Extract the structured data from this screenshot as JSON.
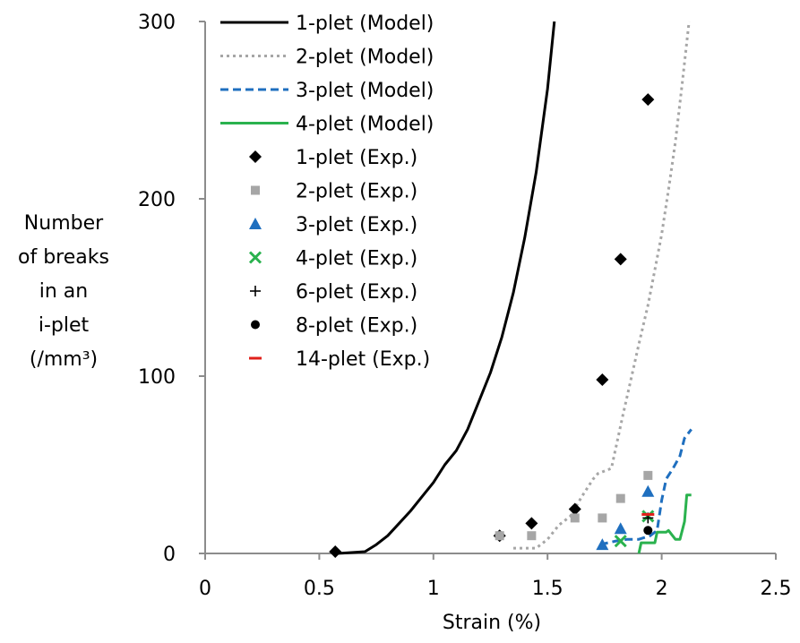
{
  "chart_data": {
    "type": "scatter",
    "xlabel": "Strain (%)",
    "ylabel_lines": [
      "Number",
      "of breaks",
      "in an",
      "i-plet",
      "(/mm³)"
    ],
    "xlim": [
      0,
      2.5
    ],
    "ylim": [
      0,
      300
    ],
    "xticks": [
      0,
      0.5,
      1,
      1.5,
      2,
      2.5
    ],
    "xtick_labels": [
      "0",
      "0.5",
      "1",
      "1.5",
      "2",
      "2.5"
    ],
    "yticks": [
      0,
      100,
      200,
      300
    ],
    "ytick_labels": [
      "0",
      "100",
      "200",
      "300"
    ],
    "grid": false,
    "legend_position": "top-left inside plot",
    "series": [
      {
        "name": "1-plet (Model)",
        "kind": "line",
        "color": "#000000",
        "dash": "solid",
        "x": [
          0.58,
          0.7,
          0.75,
          0.8,
          0.85,
          0.9,
          0.95,
          1.0,
          1.05,
          1.1,
          1.15,
          1.2,
          1.25,
          1.3,
          1.35,
          1.4,
          1.45,
          1.5,
          1.53
        ],
        "y": [
          0,
          1,
          5,
          10,
          17,
          24,
          32,
          40,
          50,
          58,
          70,
          86,
          102,
          122,
          147,
          178,
          215,
          262,
          300
        ]
      },
      {
        "name": "2-plet (Model)",
        "kind": "line",
        "color": "#a6a6a6",
        "dash": "dotted",
        "x": [
          1.35,
          1.45,
          1.5,
          1.55,
          1.6,
          1.65,
          1.7,
          1.72,
          1.78,
          1.8,
          1.83,
          1.86,
          1.9,
          1.94,
          1.97,
          2.0,
          2.03,
          2.06,
          2.09,
          2.12
        ],
        "y": [
          3,
          3,
          8,
          16,
          21,
          32,
          42,
          45,
          48,
          60,
          78,
          95,
          118,
          140,
          160,
          180,
          205,
          232,
          265,
          300
        ]
      },
      {
        "name": "3-plet (Model)",
        "kind": "line",
        "color": "#1f6fbf",
        "dash": "dashed",
        "x": [
          1.73,
          1.8,
          1.85,
          1.9,
          1.95,
          1.98,
          2.0,
          2.02,
          2.05,
          2.08,
          2.1,
          2.13
        ],
        "y": [
          5,
          7,
          8,
          8,
          10,
          13,
          30,
          42,
          48,
          55,
          65,
          70
        ]
      },
      {
        "name": "4-plet (Model)",
        "kind": "line",
        "color": "#2ab24e",
        "dash": "solid",
        "x": [
          1.9,
          1.91,
          1.97,
          1.98,
          2.02,
          2.03,
          2.06,
          2.08,
          2.1,
          2.11,
          2.13
        ],
        "y": [
          0,
          6,
          6,
          12,
          12,
          13,
          8,
          8,
          18,
          33,
          33
        ]
      },
      {
        "name": "1-plet (Exp.)",
        "kind": "points",
        "marker": "diamond",
        "color": "#000000",
        "x": [
          0.57,
          1.29,
          1.43,
          1.62,
          1.74,
          1.82,
          1.94
        ],
        "y": [
          1,
          10,
          17,
          25,
          98,
          166,
          256
        ]
      },
      {
        "name": "2-plet (Exp.)",
        "kind": "points",
        "marker": "square",
        "color": "#a6a6a6",
        "x": [
          1.29,
          1.43,
          1.62,
          1.74,
          1.82,
          1.94
        ],
        "y": [
          10,
          10,
          20,
          20,
          31,
          44
        ]
      },
      {
        "name": "3-plet (Exp.)",
        "kind": "points",
        "marker": "triangle",
        "color": "#1f6fbf",
        "x": [
          1.74,
          1.82,
          1.94
        ],
        "y": [
          5,
          14,
          35
        ]
      },
      {
        "name": "4-plet (Exp.)",
        "kind": "points",
        "marker": "x",
        "color": "#2ab24e",
        "x": [
          1.82,
          1.94
        ],
        "y": [
          7,
          21
        ]
      },
      {
        "name": "6-plet (Exp.)",
        "kind": "points",
        "marker": "plus",
        "color": "#000000",
        "x": [
          1.94
        ],
        "y": [
          20
        ]
      },
      {
        "name": "8-plet (Exp.)",
        "kind": "points",
        "marker": "circle",
        "color": "#000000",
        "x": [
          1.94
        ],
        "y": [
          13
        ]
      },
      {
        "name": "14-plet (Exp.)",
        "kind": "points",
        "marker": "dash",
        "color": "#e0201b",
        "x": [
          1.94
        ],
        "y": [
          22
        ]
      }
    ]
  }
}
